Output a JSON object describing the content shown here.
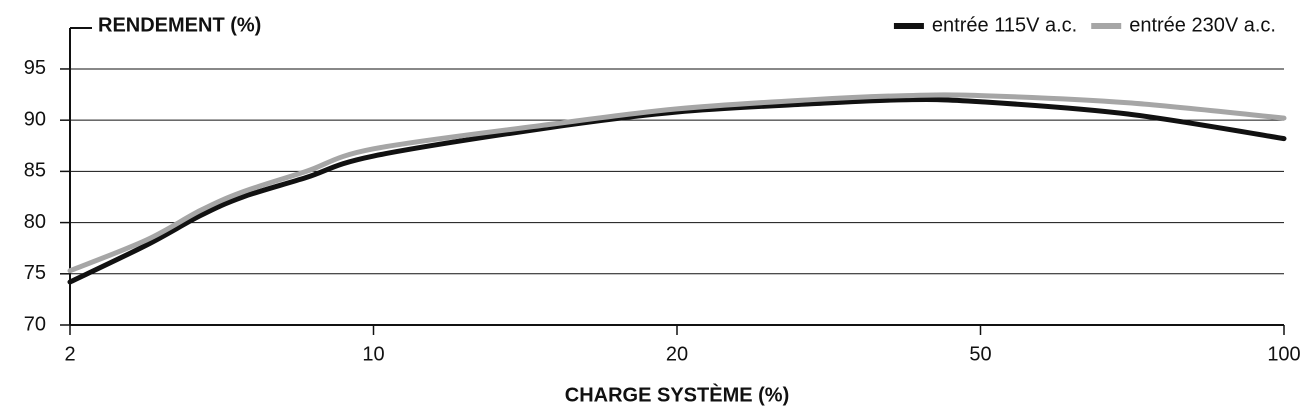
{
  "chart_data": {
    "type": "line",
    "y_label": "RENDEMENT (%)",
    "x_label": "CHARGE SYSTÈME (%)",
    "x": [
      2,
      3,
      4,
      5,
      7,
      10,
      15,
      20,
      30,
      40,
      50,
      70,
      100
    ],
    "series": [
      {
        "name": "entrée 115V a.c.",
        "color": "#111111",
        "values": [
          74.2,
          77.8,
          80.7,
          82.5,
          84.4,
          86.5,
          89.3,
          90.8,
          91.6,
          92.0,
          91.8,
          90.6,
          88.2
        ]
      },
      {
        "name": "entrée 230V a.c.",
        "color": "#a6a6a6",
        "values": [
          75.3,
          78.3,
          81.2,
          83.0,
          85.0,
          87.2,
          89.6,
          91.1,
          92.0,
          92.4,
          92.4,
          91.7,
          90.2
        ]
      }
    ],
    "xlim": [
      2,
      100
    ],
    "xticks": [
      2,
      10,
      20,
      50,
      100
    ],
    "ylim": [
      70,
      99
    ],
    "yticks": [
      70,
      75,
      80,
      85,
      90,
      95
    ],
    "grid": true,
    "legend": "top-right"
  }
}
